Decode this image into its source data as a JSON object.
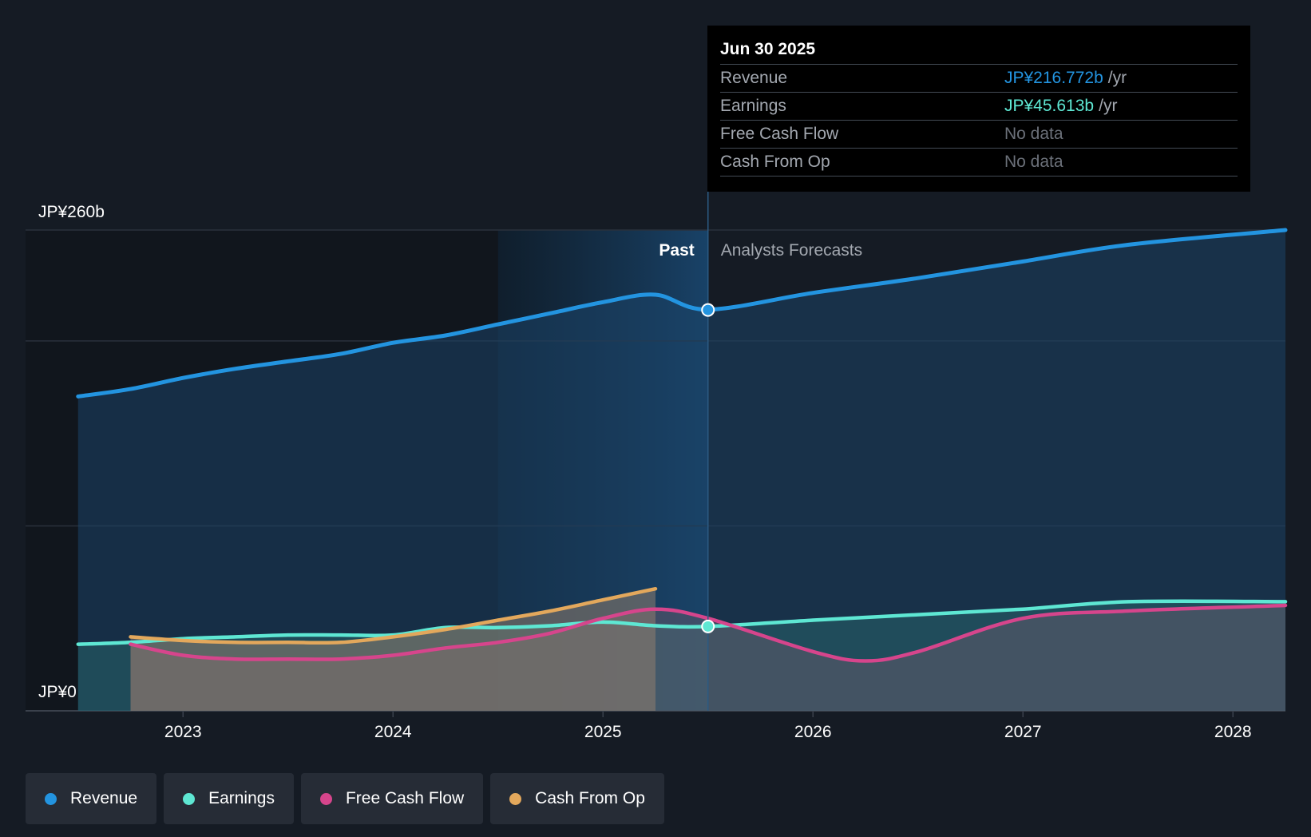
{
  "chart_data": {
    "type": "area",
    "y_axis": {
      "min": 0,
      "max": 260,
      "labels": [
        "JP¥260b",
        "JP¥0"
      ],
      "unit": "JP¥b",
      "gridlines": [
        0,
        100,
        200,
        260
      ]
    },
    "x_axis": {
      "min": 2022.25,
      "max": 2028.25,
      "ticks": [
        2023,
        2024,
        2025,
        2026,
        2027,
        2028
      ],
      "tick_labels": [
        "2023",
        "2024",
        "2025",
        "2026",
        "2027",
        "2028"
      ]
    },
    "past_label": "Past",
    "forecast_label": "Analysts Forecasts",
    "past_end": 2025.5,
    "highlight_start": 2024.5,
    "series": [
      {
        "name": "Revenue",
        "color": "#2394e0",
        "points": [
          [
            2022.5,
            170
          ],
          [
            2022.75,
            174
          ],
          [
            2023.0,
            180
          ],
          [
            2023.25,
            185
          ],
          [
            2023.5,
            189
          ],
          [
            2023.75,
            193
          ],
          [
            2024.0,
            199
          ],
          [
            2024.25,
            203
          ],
          [
            2024.5,
            209
          ],
          [
            2024.75,
            215
          ],
          [
            2025.0,
            221
          ],
          [
            2025.25,
            225
          ],
          [
            2025.5,
            216.772
          ],
          [
            2025.5,
            217
          ],
          [
            2026.0,
            226
          ],
          [
            2026.5,
            234
          ],
          [
            2027.0,
            243
          ],
          [
            2027.5,
            252
          ],
          [
            2028.25,
            260
          ]
        ]
      },
      {
        "name": "Earnings",
        "color": "#5ee7d3",
        "points": [
          [
            2022.5,
            36
          ],
          [
            2022.75,
            37
          ],
          [
            2023.0,
            39
          ],
          [
            2023.25,
            40
          ],
          [
            2023.5,
            41
          ],
          [
            2023.75,
            41
          ],
          [
            2024.0,
            41
          ],
          [
            2024.25,
            45
          ],
          [
            2024.5,
            45
          ],
          [
            2024.75,
            46
          ],
          [
            2025.0,
            48
          ],
          [
            2025.25,
            46
          ],
          [
            2025.5,
            45.613
          ],
          [
            2026.0,
            49
          ],
          [
            2026.5,
            52
          ],
          [
            2027.0,
            55
          ],
          [
            2027.5,
            59
          ],
          [
            2028.25,
            59
          ]
        ]
      },
      {
        "name": "Free Cash Flow",
        "color": "#d6458c",
        "points": [
          [
            2022.75,
            36
          ],
          [
            2023.0,
            30
          ],
          [
            2023.25,
            28
          ],
          [
            2023.5,
            28
          ],
          [
            2023.75,
            28
          ],
          [
            2024.0,
            30
          ],
          [
            2024.25,
            34
          ],
          [
            2024.5,
            37
          ],
          [
            2024.75,
            42
          ],
          [
            2025.0,
            50
          ],
          [
            2025.25,
            55
          ],
          [
            2025.5,
            50
          ],
          [
            2026.0,
            32
          ],
          [
            2026.25,
            27
          ],
          [
            2026.5,
            32
          ],
          [
            2027.0,
            50
          ],
          [
            2027.5,
            54
          ],
          [
            2028.25,
            57
          ]
        ]
      },
      {
        "name": "Cash From Op",
        "color": "#e3a85c",
        "points": [
          [
            2022.75,
            40
          ],
          [
            2023.0,
            38
          ],
          [
            2023.25,
            37
          ],
          [
            2023.5,
            37
          ],
          [
            2023.75,
            37
          ],
          [
            2024.0,
            40
          ],
          [
            2024.25,
            44
          ],
          [
            2024.5,
            49
          ],
          [
            2024.75,
            54
          ],
          [
            2025.0,
            60
          ],
          [
            2025.25,
            66
          ]
        ]
      }
    ],
    "tooltip": {
      "date": "Jun 30 2025",
      "rows": [
        {
          "label": "Revenue",
          "value": "JP¥216.772b",
          "unit": "/yr"
        },
        {
          "label": "Earnings",
          "value": "JP¥45.613b",
          "unit": "/yr"
        },
        {
          "label": "Free Cash Flow",
          "value": "No data",
          "unit": ""
        },
        {
          "label": "Cash From Op",
          "value": "No data",
          "unit": ""
        }
      ]
    },
    "legend": [
      "Revenue",
      "Earnings",
      "Free Cash Flow",
      "Cash From Op"
    ]
  }
}
